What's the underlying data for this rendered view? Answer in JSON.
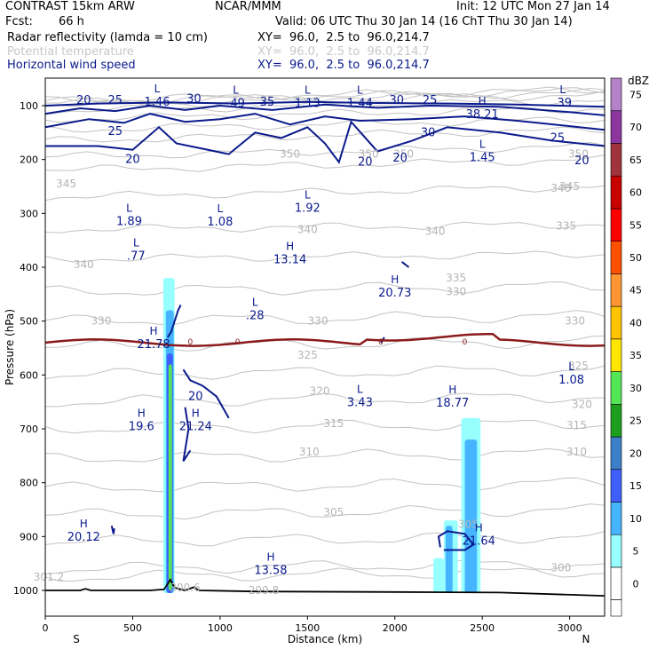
{
  "header": {
    "model": "CONTRAST 15km ARW",
    "org": "NCAR/MMM",
    "init": "Init: 12 UTC Mon 27 Jan 14",
    "fcst_label": "Fcst:",
    "fcst_value": "66 h",
    "valid": "Valid: 06 UTC Thu 30 Jan 14 (16 ChT Thu 30 Jan 14)"
  },
  "fields": [
    {
      "name": "Radar reflectivity (lamda = 10 cm)",
      "xy": "XY=  96.0,  2.5 to  96.0,214.7",
      "color": "#000000"
    },
    {
      "name": "Potential temperature",
      "xy": "XY=  96.0,  2.5 to  96.0,214.7",
      "color": "#c8c8c8"
    },
    {
      "name": "Horizontal wind speed",
      "xy": "XY=  96.0,  2.5 to  96.0,214.7",
      "color": "#0a1a8c"
    }
  ],
  "chart_data": {
    "type": "cross-section contour",
    "xlabel": "Distance (km)",
    "ylabel": "Pressure (hPa)",
    "xlim": [
      0,
      3200
    ],
    "ylim": [
      1050,
      70
    ],
    "xticks": [
      0,
      500,
      1000,
      1500,
      2000,
      2500,
      3000
    ],
    "yticks": [
      100,
      200,
      300,
      400,
      500,
      600,
      700,
      800,
      900,
      1000
    ],
    "x_ends": {
      "left": "S",
      "right": "N"
    },
    "colorbar": {
      "title": "dBZ",
      "levels": [
        0,
        5,
        10,
        15,
        20,
        25,
        30,
        35,
        40,
        45,
        50,
        55,
        60,
        65,
        70,
        75
      ],
      "colors": [
        "#ffffff",
        "#98ffff",
        "#46b4ff",
        "#3f5fff",
        "#3d7fc8",
        "#1e9e1e",
        "#55e655",
        "#ffe600",
        "#ffc300",
        "#ff9632",
        "#ff5000",
        "#ff0000",
        "#c80000",
        "#a0343c",
        "#8c37a0",
        "#b482c8"
      ]
    },
    "freezing_line": {
      "label": "0",
      "color": "#8b1a1a"
    },
    "theta_labels": [
      {
        "x": 120,
        "p": 245,
        "v": "345"
      },
      {
        "x": 1850,
        "p": 190,
        "v": "350"
      },
      {
        "x": 2050,
        "p": 190,
        "v": "350"
      },
      {
        "x": 3050,
        "p": 190,
        "v": "350"
      },
      {
        "x": 1400,
        "p": 190,
        "v": "350"
      },
      {
        "x": 1500,
        "p": 330,
        "v": "340"
      },
      {
        "x": 220,
        "p": 395,
        "v": "340"
      },
      {
        "x": 3000,
        "p": 250,
        "v": "345"
      },
      {
        "x": 2230,
        "p": 333,
        "v": "340"
      },
      {
        "x": 2950,
        "p": 253,
        "v": "340"
      },
      {
        "x": 2980,
        "p": 323,
        "v": "335"
      },
      {
        "x": 2350,
        "p": 420,
        "v": "335"
      },
      {
        "x": 320,
        "p": 500,
        "v": "330"
      },
      {
        "x": 1560,
        "p": 500,
        "v": "330"
      },
      {
        "x": 2350,
        "p": 445,
        "v": "330"
      },
      {
        "x": 3030,
        "p": 500,
        "v": "330"
      },
      {
        "x": 1500,
        "p": 563,
        "v": "325"
      },
      {
        "x": 3050,
        "p": 583,
        "v": "325"
      },
      {
        "x": 1570,
        "p": 630,
        "v": "320"
      },
      {
        "x": 3070,
        "p": 655,
        "v": "320"
      },
      {
        "x": 1650,
        "p": 690,
        "v": "315"
      },
      {
        "x": 3040,
        "p": 693,
        "v": "315"
      },
      {
        "x": 1510,
        "p": 743,
        "v": "310"
      },
      {
        "x": 3040,
        "p": 743,
        "v": "310"
      },
      {
        "x": 1650,
        "p": 855,
        "v": "305"
      },
      {
        "x": 2420,
        "p": 877,
        "v": "305"
      },
      {
        "x": 2950,
        "p": 958,
        "v": "300"
      },
      {
        "x": 1250,
        "p": 1000,
        "v": "299.8"
      },
      {
        "x": 20,
        "p": 975,
        "v": "301.2"
      },
      {
        "x": 800,
        "p": 995,
        "v": "300.6"
      }
    ],
    "wind_labels": [
      {
        "x": 220,
        "p": 90,
        "v": "20"
      },
      {
        "x": 400,
        "p": 90,
        "v": "25"
      },
      {
        "x": 850,
        "p": 88,
        "v": "30"
      },
      {
        "x": 1270,
        "p": 93,
        "v": "35"
      },
      {
        "x": 2010,
        "p": 90,
        "v": "30"
      },
      {
        "x": 2200,
        "p": 90,
        "v": "25"
      },
      {
        "x": 400,
        "p": 148,
        "v": "25"
      },
      {
        "x": 500,
        "p": 200,
        "v": "20"
      },
      {
        "x": 1830,
        "p": 205,
        "v": "20"
      },
      {
        "x": 2030,
        "p": 197,
        "v": "20"
      },
      {
        "x": 2190,
        "p": 150,
        "v": "30"
      },
      {
        "x": 2930,
        "p": 160,
        "v": "25"
      },
      {
        "x": 3070,
        "p": 202,
        "v": "20"
      },
      {
        "x": 860,
        "p": 640,
        "v": "20"
      }
    ],
    "extrema": [
      {
        "x": 640,
        "p": 75,
        "t": "L",
        "v": "1.46"
      },
      {
        "x": 1090,
        "p": 78,
        "t": "L",
        "v": ".49"
      },
      {
        "x": 1500,
        "p": 78,
        "t": "L",
        "v": "1.13"
      },
      {
        "x": 1800,
        "p": 78,
        "t": "L",
        "v": "1.44"
      },
      {
        "x": 2500,
        "p": 98,
        "t": "H",
        "v": "38.21"
      },
      {
        "x": 2960,
        "p": 77,
        "t": "L",
        "v": ".39"
      },
      {
        "x": 2500,
        "p": 178,
        "t": "L",
        "v": "1.45"
      },
      {
        "x": 1500,
        "p": 272,
        "t": "L",
        "v": "1.92"
      },
      {
        "x": 1000,
        "p": 298,
        "t": "L",
        "v": "1.08"
      },
      {
        "x": 480,
        "p": 297,
        "t": "L",
        "v": "1.89"
      },
      {
        "x": 520,
        "p": 361,
        "t": "L",
        "v": ".77"
      },
      {
        "x": 1400,
        "p": 368,
        "t": "H",
        "v": "13.14"
      },
      {
        "x": 2000,
        "p": 430,
        "t": "H",
        "v": "20.73"
      },
      {
        "x": 1200,
        "p": 472,
        "t": "L",
        "v": ".28"
      },
      {
        "x": 620,
        "p": 525,
        "t": "H",
        "v": "21.78"
      },
      {
        "x": 3010,
        "p": 591,
        "t": "L",
        "v": "1.08"
      },
      {
        "x": 1800,
        "p": 633,
        "t": "L",
        "v": "3.43"
      },
      {
        "x": 2330,
        "p": 634,
        "t": "H",
        "v": "18.77"
      },
      {
        "x": 550,
        "p": 678,
        "t": "H",
        "v": "19.6"
      },
      {
        "x": 860,
        "p": 678,
        "t": "H",
        "v": "21.24"
      },
      {
        "x": 2480,
        "p": 890,
        "t": "H",
        "v": "21.64"
      },
      {
        "x": 220,
        "p": 883,
        "t": "H",
        "v": "20.12"
      },
      {
        "x": 1290,
        "p": 945,
        "t": "H",
        "v": "13.58"
      }
    ]
  }
}
